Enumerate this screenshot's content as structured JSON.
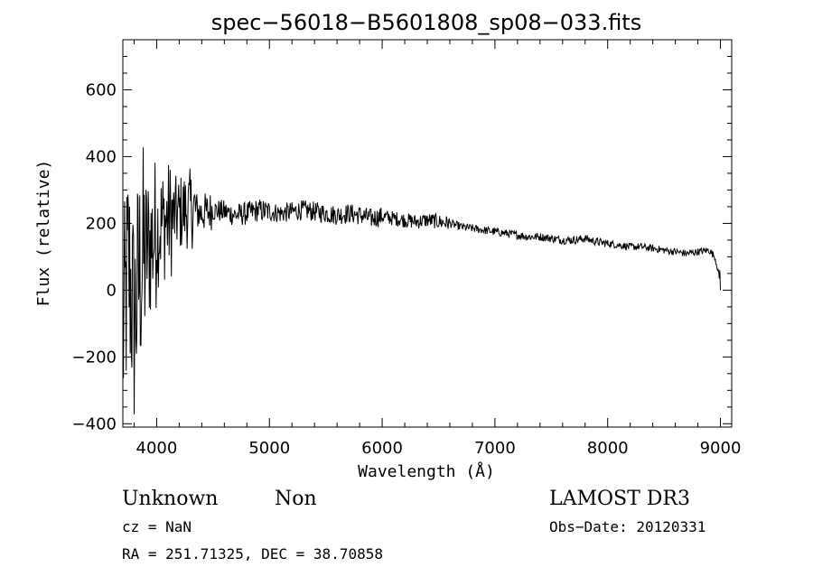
{
  "chart_data": {
    "type": "line",
    "title": "spec−56018−B5601808_sp08−033.fits",
    "xlabel": "Wavelength (Å)",
    "ylabel": "Flux (relative)",
    "xlim": [
      3700,
      9100
    ],
    "ylim": [
      -410,
      750
    ],
    "xticks": [
      4000,
      5000,
      6000,
      7000,
      8000,
      9000
    ],
    "yticks": [
      -400,
      -200,
      0,
      200,
      400,
      600
    ],
    "ytick_labels": [
      "−400",
      "−200",
      "0",
      "200",
      "400",
      "600"
    ],
    "grid": false,
    "series": [
      {
        "color": "#000000",
        "x": [
          3700,
          3750,
          3800,
          3850,
          3900,
          3950,
          4000,
          4050,
          4100,
          4150,
          4200,
          4250,
          4300,
          4400,
          4500,
          4600,
          4700,
          4800,
          4900,
          5000,
          5100,
          5200,
          5300,
          5400,
          5500,
          5600,
          5700,
          5800,
          5900,
          6000,
          6100,
          6200,
          6300,
          6400,
          6500,
          6600,
          6700,
          6800,
          6900,
          7000,
          7100,
          7200,
          7300,
          7400,
          7500,
          7600,
          7700,
          7800,
          7900,
          8000,
          8100,
          8200,
          8300,
          8400,
          8500,
          8600,
          8700,
          8800,
          8900,
          8950,
          8980,
          9000
        ],
        "y": [
          -150,
          80,
          -100,
          60,
          120,
          140,
          180,
          200,
          210,
          220,
          230,
          240,
          245,
          230,
          240,
          235,
          225,
          230,
          240,
          235,
          230,
          235,
          240,
          235,
          230,
          225,
          230,
          225,
          215,
          220,
          215,
          210,
          205,
          210,
          205,
          200,
          190,
          185,
          180,
          175,
          170,
          165,
          160,
          160,
          155,
          150,
          150,
          155,
          145,
          140,
          135,
          130,
          130,
          125,
          120,
          115,
          110,
          115,
          120,
          100,
          60,
          0
        ]
      }
    ]
  },
  "info": {
    "class_label": "Unknown",
    "subclass_label": "Non",
    "survey_label": "LAMOST DR3",
    "cz_text": "cz = NaN",
    "obs_date_text": "Obs−Date: 20120331",
    "coords_text": "RA = 251.71325, DEC =  38.70858"
  }
}
